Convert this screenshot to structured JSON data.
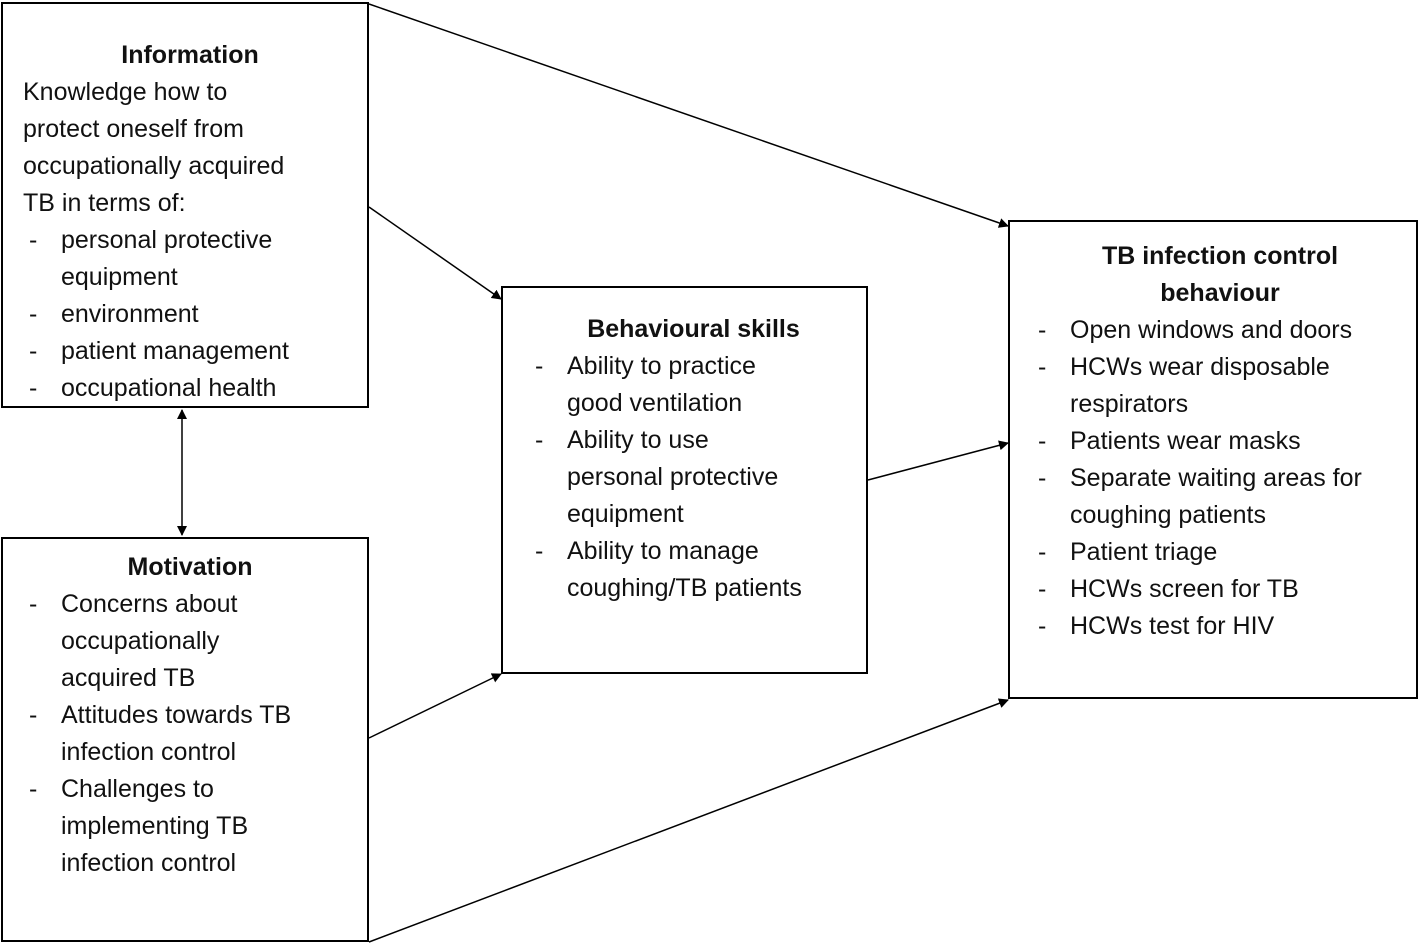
{
  "information": {
    "title": "Information",
    "intro": [
      "Knowledge how to",
      "protect oneself from",
      "occupationally acquired",
      "TB in terms of:"
    ],
    "items": [
      [
        "personal protective",
        "equipment"
      ],
      [
        "environment"
      ],
      [
        "patient management"
      ],
      [
        "occupational health"
      ]
    ]
  },
  "motivation": {
    "title": "Motivation",
    "items": [
      [
        "Concerns about",
        "occupationally",
        "acquired TB"
      ],
      [
        "Attitudes towards TB",
        "infection control"
      ],
      [
        "Challenges to",
        "implementing TB",
        "infection control"
      ]
    ]
  },
  "behavioural_skills": {
    "title": "Behavioural skills",
    "items": [
      [
        "Ability to practice",
        "good ventilation"
      ],
      [
        "Ability to use",
        "personal protective",
        "equipment"
      ],
      [
        "Ability to manage",
        "coughing/TB patients"
      ]
    ]
  },
  "tb_behaviour": {
    "title": [
      "TB infection control",
      "behaviour"
    ],
    "items": [
      [
        "Open windows and doors"
      ],
      [
        "HCWs wear disposable",
        "respirators"
      ],
      [
        "Patients wear masks"
      ],
      [
        "Separate waiting areas for",
        "coughing patients"
      ],
      [
        "Patient triage"
      ],
      [
        "HCWs screen for TB"
      ],
      [
        "HCWs test for HIV"
      ]
    ]
  }
}
